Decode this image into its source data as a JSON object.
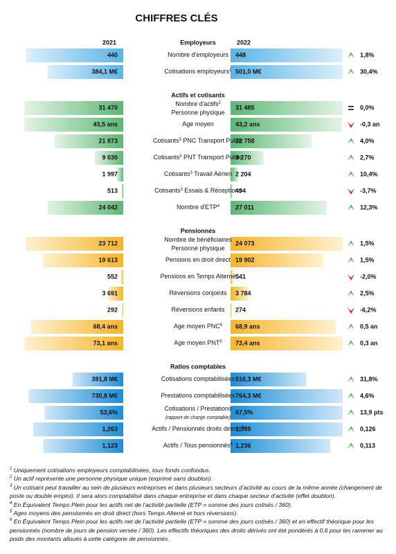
{
  "title": "CHIFFRES CLÉS",
  "year1": "2021",
  "year2": "2022",
  "sections": [
    {
      "title": "Employeurs",
      "color": "blue",
      "rows": [
        {
          "label": [
            {
              "t": "Nombre d'employeurs"
            }
          ],
          "v1": "440",
          "v2": "448",
          "trend": "up",
          "change": "1,8%"
        },
        {
          "label": [
            {
              "t": "Cotisations employeurs"
            },
            {
              "sup": "1"
            }
          ],
          "v1": "384,1 M€",
          "v2": "501,0 M€",
          "trend": "up",
          "change": "30,4%"
        }
      ]
    },
    {
      "title": "Actifs et cotisants",
      "color": "green",
      "rows": [
        {
          "label": [
            {
              "t": "Nombre d'actifs"
            },
            {
              "sup": "2"
            }
          ],
          "sub": "Personne physique",
          "v1": "31 470",
          "v2": "31 485",
          "trend": "equal",
          "change": "0,0%"
        },
        {
          "label": [
            {
              "t": "Age moyen"
            }
          ],
          "v1": "43,5 ans",
          "v2": "43,2 ans",
          "trend": "down",
          "change": "-0,3 an"
        },
        {
          "label": [
            {
              "t": "Cotisants"
            },
            {
              "sup": "3"
            },
            {
              "t": " PNC Transport Public"
            }
          ],
          "v1": "21 873",
          "v2": "22 758",
          "trend": "up",
          "change": "4,0%"
        },
        {
          "label": [
            {
              "t": "Cotisants"
            },
            {
              "sup": "3"
            },
            {
              "t": " PNT Transport Public"
            }
          ],
          "v1": "9 030",
          "v2": "9 270",
          "trend": "up",
          "change": "2,7%"
        },
        {
          "label": [
            {
              "t": "Cotisants"
            },
            {
              "sup": "3"
            },
            {
              "t": " Travail Aérien"
            }
          ],
          "v1": "1 997",
          "v2": "2 204",
          "trend": "up",
          "change": "10,4%"
        },
        {
          "label": [
            {
              "t": "Cotisants"
            },
            {
              "sup": "3"
            },
            {
              "t": " Essais & Réceptions"
            }
          ],
          "v1": "513",
          "v2": "494",
          "trend": "down",
          "change": "-3,7%"
        },
        {
          "label": [
            {
              "t": "Nombre d'ETP"
            },
            {
              "sup": "4"
            }
          ],
          "v1": "24 042",
          "v2": "27 011",
          "trend": "up",
          "change": "12,3%"
        }
      ]
    },
    {
      "title": "Pensionnés",
      "color": "orange",
      "rows": [
        {
          "label": [
            {
              "t": "Nombre de bénéficiaires"
            }
          ],
          "sub": "Personne physique",
          "v1": "23 712",
          "v2": "24 073",
          "trend": "up",
          "change": "1,5%"
        },
        {
          "label": [
            {
              "t": "Pensions en droit direct"
            }
          ],
          "v1": "19 613",
          "v2": "19 902",
          "trend": "up",
          "change": "1,5%"
        },
        {
          "label": [
            {
              "t": "Pensions en Temps Alterné"
            }
          ],
          "v1": "552",
          "v2": "541",
          "trend": "down",
          "change": "-2,0%"
        },
        {
          "label": [
            {
              "t": "Réversions conjoints"
            }
          ],
          "v1": "3 691",
          "v2": "3 784",
          "trend": "up",
          "change": "2,5%"
        },
        {
          "label": [
            {
              "t": "Réversions enfants"
            }
          ],
          "v1": "292",
          "v2": "274",
          "trend": "down",
          "change": "-6,2%"
        },
        {
          "label": [
            {
              "t": "Age moyen PNC"
            },
            {
              "sup": "5"
            }
          ],
          "v1": "68,4 ans",
          "v2": "68,9 ans",
          "trend": "up",
          "change": "0,5 an"
        },
        {
          "label": [
            {
              "t": "Age moyen PNT"
            },
            {
              "sup": "5"
            }
          ],
          "v1": "73,1 ans",
          "v2": "73,4 ans",
          "trend": "up",
          "change": "0,3 an"
        }
      ]
    },
    {
      "title": "Ratios comptables",
      "color": "darkblue",
      "rows": [
        {
          "label": [
            {
              "t": "Cotisations comptabilisées"
            }
          ],
          "v1": "391,8 M€",
          "v2": "516,3 M€",
          "trend": "up",
          "change": "31,8%"
        },
        {
          "label": [
            {
              "t": "Prestations comptabilisées"
            }
          ],
          "v1": "730,8 M€",
          "v2": "764,3 M€",
          "trend": "up",
          "change": "4,6%"
        },
        {
          "label": [
            {
              "t": "Cotisations / Prestations"
            }
          ],
          "note": "(rapport de charge comptable)",
          "v1": "53,6%",
          "v2": "67,5%",
          "trend": "up",
          "change": "13,9 pts"
        },
        {
          "label": [
            {
              "t": "Actifs / Pensionnés droits directs"
            },
            {
              "sup": "6"
            }
          ],
          "v1": "1,263",
          "v2": "1,389",
          "trend": "up",
          "change": "0,126"
        },
        {
          "label": [
            {
              "t": "Actifs / Tous pensionnés"
            },
            {
              "sup": "6"
            }
          ],
          "v1": "1,123",
          "v2": "1,236",
          "trend": "up",
          "change": "0,113"
        }
      ]
    }
  ],
  "footnotes": [
    {
      "n": "1",
      "text": " Uniquement cotisations employeurs comptabilisées, tous fonds confondus."
    },
    {
      "n": "2",
      "text": " Un actif représente une personne physique unique (exprimé sans doublon)."
    },
    {
      "n": "3",
      "text": " Un cotisant peut travailler au sein de plusieurs entreprises et dans plusieurs secteurs d’activité au cours de la même année (changement de poste ou double emploi). Il sera alors comptabilisé dans chaque entreprise et dans chaque secteur d’activité (effet doublon)."
    },
    {
      "n": "4",
      "text": " En Équivalent Temps Plein pour les actifs net de l’activité partielle (ETP = somme des jours cotisés / 360)."
    },
    {
      "n": "5",
      "text": " Ages moyens des pensionnés en droit direct (hors Temps Alterné et hors réversions)."
    },
    {
      "n": "6",
      "text": " En Équivalent Temps Plein pour les actifs net de l’activité partielle (ETP = somme des jours cotisés / 360) et en effectif théorique pour les pensionnés (nombre de jours de pension versée / 360). Les effectifs théoriques des droits dérivés ont été pondérés à 0,6 pour les ramener au poids des montants alloués à cette catégorie de pensionnés."
    }
  ]
}
